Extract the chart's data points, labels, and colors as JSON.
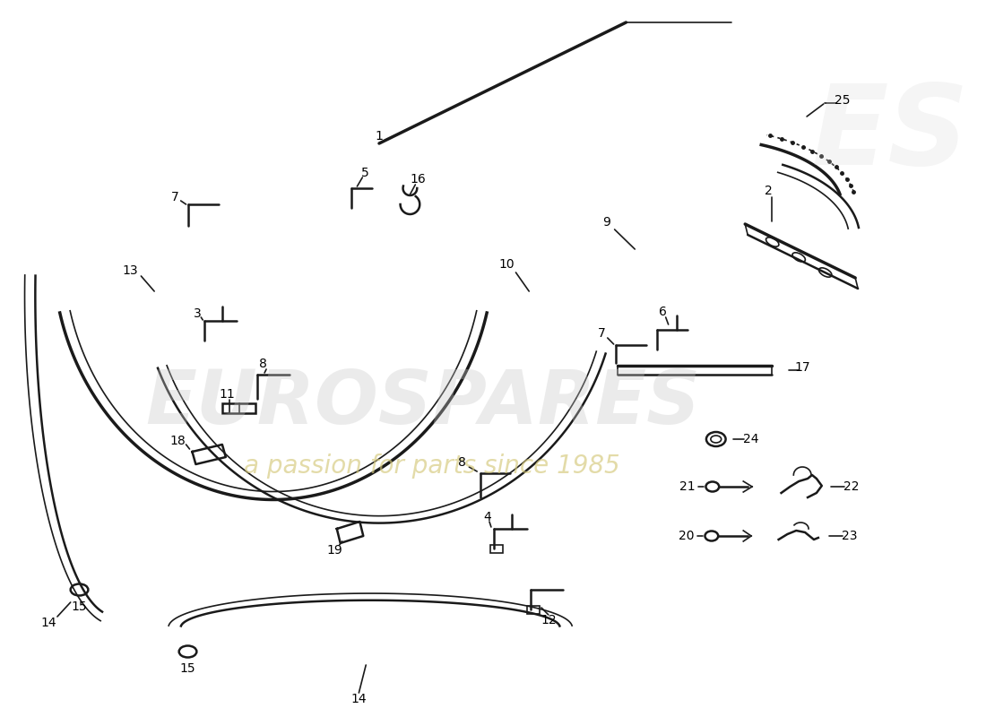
{
  "bg_color": "#ffffff",
  "watermark_text1": "EUROSPARES",
  "watermark_text2": "a passion for parts since 1985",
  "line_color": "#1a1a1a",
  "watermark_color1": "#c8c8c8",
  "watermark_color2": "#d4c87a"
}
